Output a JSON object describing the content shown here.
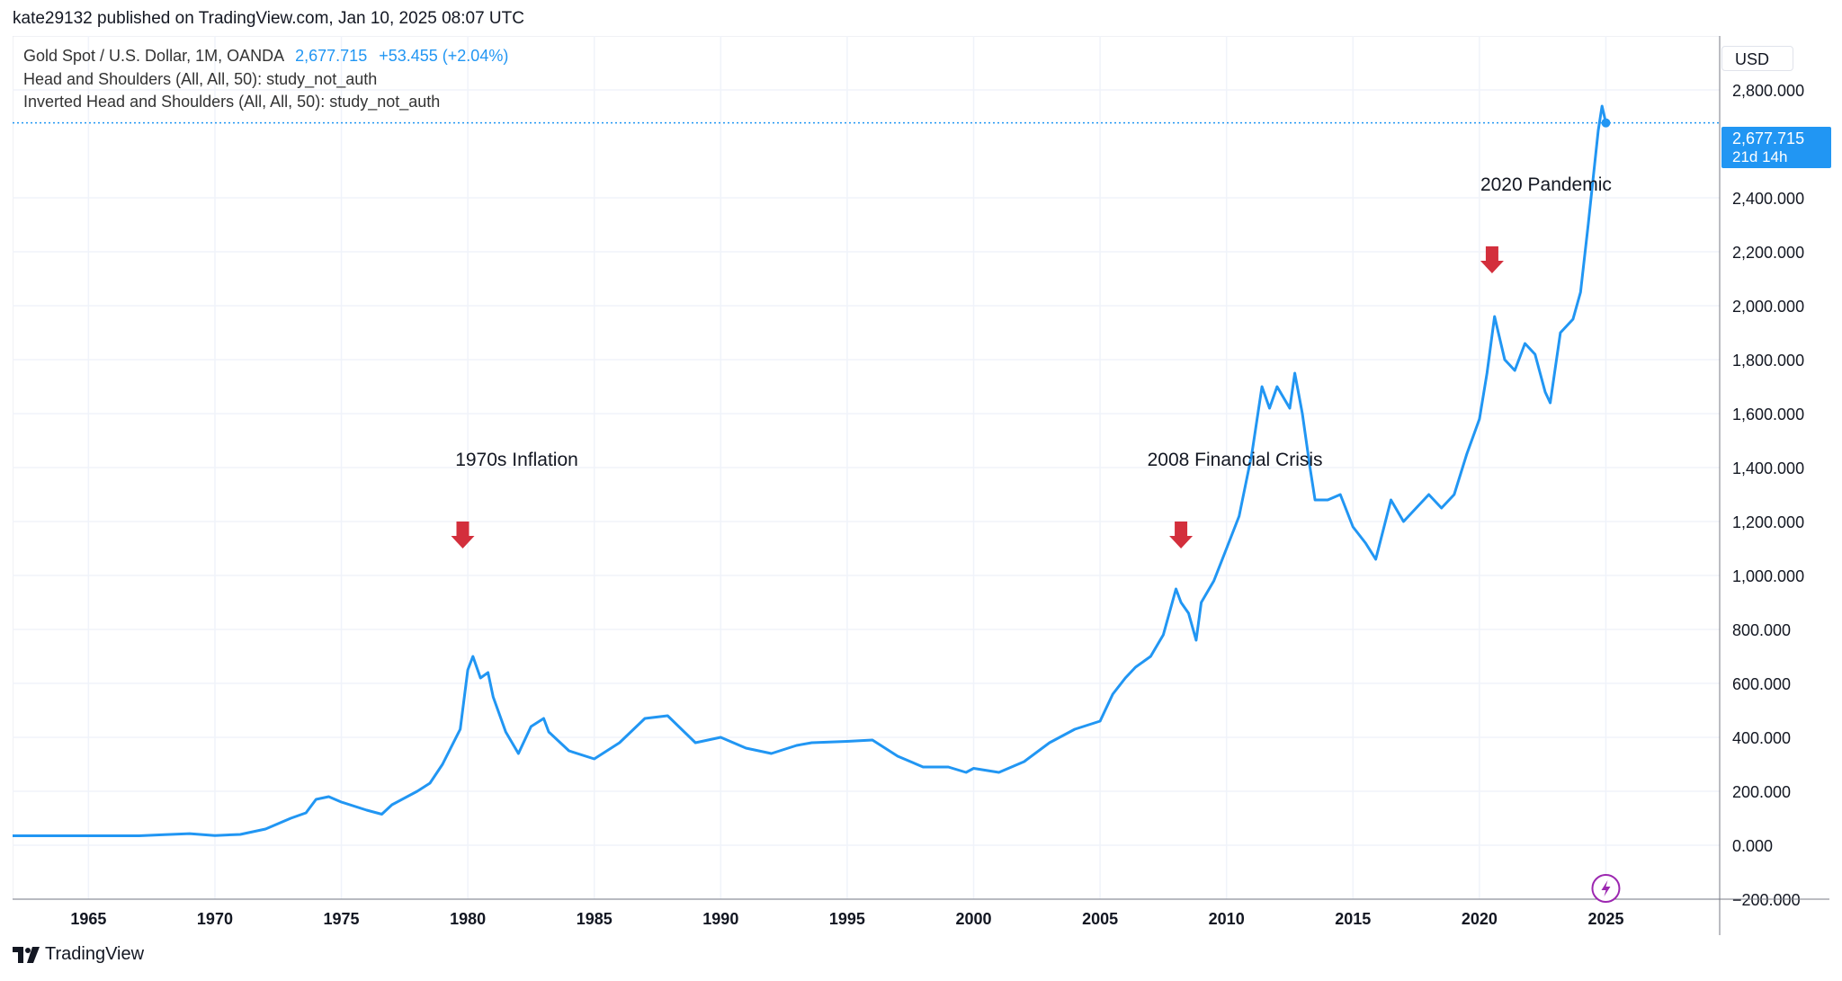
{
  "header": {
    "published": "kate29132 published on TradingView.com, Jan 10, 2025 08:07 UTC"
  },
  "legend": {
    "symbol": "Gold Spot / U.S. Dollar, 1M, OANDA",
    "last": "2,677.715",
    "change": "+53.455 (+2.04%)",
    "study1": "Head and Shoulders (All, All, 50): study_not_auth",
    "study2": "Inverted Head and Shoulders (All, All, 50): study_not_auth"
  },
  "price_scale": {
    "currency": "USD",
    "last_price": "2,677.715",
    "countdown": "21d 14h"
  },
  "footer": {
    "brand": "TradingView"
  },
  "colors": {
    "line": "#2196f3",
    "arrow": "#d32f3c",
    "grid": "#f0f3fa",
    "text": "#131722"
  },
  "icons": {
    "logo": "tradingview-logo-icon",
    "flash": "lightning-icon",
    "arrow": "arrow-down-icon"
  },
  "chart_data": {
    "type": "line",
    "title": "",
    "xlabel": "",
    "ylabel": "",
    "xlim": [
      1962,
      2029.5
    ],
    "ylim": [
      -200,
      3000
    ],
    "x_ticks": [
      1965,
      1970,
      1975,
      1980,
      1985,
      1990,
      1995,
      2000,
      2005,
      2010,
      2015,
      2020,
      2025
    ],
    "y_ticks": [
      -200,
      0,
      200,
      400,
      600,
      800,
      1000,
      1200,
      1400,
      1600,
      1800,
      2000,
      2200,
      2400,
      2800
    ],
    "y_tick_labels": [
      "−200.000",
      "0.000",
      "200.000",
      "400.000",
      "600.000",
      "800.000",
      "1,000.000",
      "1,200.000",
      "1,400.000",
      "1,600.000",
      "1,800.000",
      "2,000.000",
      "2,200.000",
      "2,400.000",
      "2,800.000"
    ],
    "grid": true,
    "series": [
      {
        "x": [
          1962.0,
          1967.0,
          1968.0,
          1969.0,
          1970.0,
          1971.0,
          1972.0,
          1973.0,
          1973.6,
          1974.0,
          1974.5,
          1975.0,
          1976.0,
          1976.6,
          1977.0,
          1978.0,
          1978.5,
          1979.0,
          1979.7,
          1980.0,
          1980.2,
          1980.5,
          1980.8,
          1981.0,
          1981.5,
          1982.0,
          1982.5,
          1983.0,
          1983.2,
          1984.0,
          1985.0,
          1986.0,
          1987.0,
          1987.9,
          1989.0,
          1990.0,
          1991.0,
          1992.0,
          1993.0,
          1993.6,
          1995.0,
          1996.0,
          1997.0,
          1998.0,
          1999.0,
          1999.7,
          2000.0,
          2001.0,
          2002.0,
          2003.0,
          2004.0,
          2005.0,
          2005.5,
          2006.0,
          2006.4,
          2007.0,
          2007.5,
          2008.0,
          2008.2,
          2008.5,
          2008.8,
          2009.0,
          2009.5,
          2010.0,
          2010.5,
          2011.0,
          2011.4,
          2011.7,
          2012.0,
          2012.5,
          2012.7,
          2013.0,
          2013.3,
          2013.5,
          2014.0,
          2014.5,
          2015.0,
          2015.5,
          2015.9,
          2016.5,
          2017.0,
          2018.0,
          2018.5,
          2019.0,
          2019.5,
          2020.0,
          2020.3,
          2020.6,
          2021.0,
          2021.4,
          2021.8,
          2022.2,
          2022.6,
          2022.8,
          2023.2,
          2023.7,
          2024.0,
          2024.3,
          2024.7,
          2024.85,
          2025.0
        ],
        "y": [
          35,
          35,
          39,
          43,
          36,
          40,
          60,
          100,
          120,
          170,
          180,
          160,
          130,
          115,
          150,
          200,
          230,
          300,
          430,
          650,
          700,
          620,
          640,
          550,
          420,
          340,
          440,
          470,
          420,
          350,
          320,
          380,
          470,
          480,
          380,
          400,
          360,
          340,
          370,
          380,
          385,
          390,
          330,
          290,
          290,
          270,
          285,
          270,
          310,
          380,
          430,
          460,
          560,
          620,
          660,
          700,
          780,
          950,
          900,
          860,
          760,
          900,
          980,
          1100,
          1220,
          1450,
          1700,
          1620,
          1700,
          1620,
          1750,
          1600,
          1400,
          1280,
          1280,
          1300,
          1180,
          1120,
          1060,
          1280,
          1200,
          1300,
          1250,
          1300,
          1450,
          1580,
          1750,
          1960,
          1800,
          1760,
          1860,
          1820,
          1680,
          1640,
          1900,
          1950,
          2050,
          2300,
          2650,
          2740,
          2677.715
        ]
      }
    ],
    "last_value": 2677.715,
    "annotations": [
      {
        "text": "1970s Inflation",
        "x": 1979.8,
        "arrow_y": 1100
      },
      {
        "text": "2008 Financial Crisis",
        "x": 2008.2,
        "arrow_y": 1100
      },
      {
        "text": "2020 Pandemic",
        "x": 2020.5,
        "arrow_y": 2120
      }
    ]
  }
}
